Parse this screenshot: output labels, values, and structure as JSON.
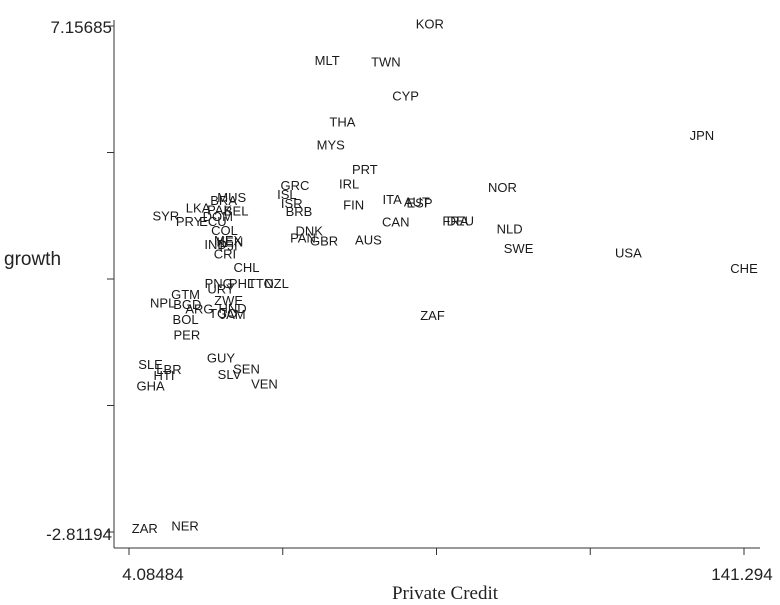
{
  "chart_data": {
    "type": "scatter",
    "xlabel": "Private Credit",
    "ylabel": "growth",
    "xlim": [
      4.08484,
      141.294
    ],
    "ylim": [
      -2.81194,
      7.15685
    ],
    "x_tick_labels": [
      "4.08484",
      "141.294"
    ],
    "y_tick_labels": [
      "7.15685",
      "-2.81194"
    ],
    "points": [
      {
        "label": "KOR",
        "x": 71.2,
        "y": 7.18
      },
      {
        "label": "MLT",
        "x": 48.3,
        "y": 6.46
      },
      {
        "label": "TWN",
        "x": 61.4,
        "y": 6.43
      },
      {
        "label": "CYP",
        "x": 65.8,
        "y": 5.76
      },
      {
        "label": "THA",
        "x": 51.7,
        "y": 5.24
      },
      {
        "label": "MYS",
        "x": 49.1,
        "y": 4.79
      },
      {
        "label": "JPN",
        "x": 131.9,
        "y": 4.98
      },
      {
        "label": "PRT",
        "x": 56.7,
        "y": 4.31
      },
      {
        "label": "IRL",
        "x": 53.2,
        "y": 4.02
      },
      {
        "label": "GRC",
        "x": 41.1,
        "y": 3.99
      },
      {
        "label": "NOR",
        "x": 87.4,
        "y": 3.95
      },
      {
        "label": "ISL",
        "x": 39.3,
        "y": 3.82
      },
      {
        "label": "ITA",
        "x": 62.8,
        "y": 3.72
      },
      {
        "label": "AUT",
        "x": 68.3,
        "y": 3.67
      },
      {
        "label": "ESP",
        "x": 68.9,
        "y": 3.65
      },
      {
        "label": "ISR",
        "x": 40.4,
        "y": 3.64
      },
      {
        "label": "FIN",
        "x": 54.2,
        "y": 3.61
      },
      {
        "label": "BRB",
        "x": 42.0,
        "y": 3.48
      },
      {
        "label": "CAN",
        "x": 63.6,
        "y": 3.27
      },
      {
        "label": "FRA",
        "x": 76.9,
        "y": 3.29
      },
      {
        "label": "DEU",
        "x": 78.0,
        "y": 3.29
      },
      {
        "label": "NLD",
        "x": 89.0,
        "y": 3.14
      },
      {
        "label": "DNK",
        "x": 44.3,
        "y": 3.1
      },
      {
        "label": "PAN",
        "x": 42.9,
        "y": 2.96
      },
      {
        "label": "GBR",
        "x": 47.6,
        "y": 2.9
      },
      {
        "label": "AUS",
        "x": 57.5,
        "y": 2.92
      },
      {
        "label": "SWE",
        "x": 91.0,
        "y": 2.75
      },
      {
        "label": "USA",
        "x": 115.5,
        "y": 2.66
      },
      {
        "label": "CHE",
        "x": 141.3,
        "y": 2.36
      },
      {
        "label": "MUS",
        "x": 27.0,
        "y": 3.76
      },
      {
        "label": "BRA",
        "x": 25.2,
        "y": 3.7
      },
      {
        "label": "LKA",
        "x": 19.5,
        "y": 3.55
      },
      {
        "label": "PAK",
        "x": 24.3,
        "y": 3.51
      },
      {
        "label": "BEL",
        "x": 28.0,
        "y": 3.49
      },
      {
        "label": "SYR",
        "x": 12.3,
        "y": 3.39
      },
      {
        "label": "DOM",
        "x": 23.9,
        "y": 3.38
      },
      {
        "label": "PRY",
        "x": 17.5,
        "y": 3.28
      },
      {
        "label": "ECU",
        "x": 22.8,
        "y": 3.28
      },
      {
        "label": "COL",
        "x": 25.4,
        "y": 3.11
      },
      {
        "label": "MEX",
        "x": 26.2,
        "y": 2.91
      },
      {
        "label": "KEN",
        "x": 26.6,
        "y": 2.88
      },
      {
        "label": "IND",
        "x": 23.4,
        "y": 2.83
      },
      {
        "label": "FJI",
        "x": 26.3,
        "y": 2.8
      },
      {
        "label": "CRI",
        "x": 25.5,
        "y": 2.64
      },
      {
        "label": "CHL",
        "x": 30.3,
        "y": 2.38
      },
      {
        "label": "PNG",
        "x": 24.1,
        "y": 2.06
      },
      {
        "label": "PHL",
        "x": 29.2,
        "y": 2.06
      },
      {
        "label": "TTO",
        "x": 33.5,
        "y": 2.06
      },
      {
        "label": "NZL",
        "x": 37.0,
        "y": 2.06
      },
      {
        "label": "URY",
        "x": 24.6,
        "y": 1.95
      },
      {
        "label": "GTM",
        "x": 16.7,
        "y": 1.85
      },
      {
        "label": "ZWE",
        "x": 26.3,
        "y": 1.73
      },
      {
        "label": "NPL",
        "x": 11.6,
        "y": 1.68
      },
      {
        "label": "BGD",
        "x": 17.1,
        "y": 1.65
      },
      {
        "label": "ARG",
        "x": 19.8,
        "y": 1.56
      },
      {
        "label": "HND",
        "x": 27.2,
        "y": 1.57
      },
      {
        "label": "TGO",
        "x": 25.1,
        "y": 1.47
      },
      {
        "label": "JAM",
        "x": 27.2,
        "y": 1.45
      },
      {
        "label": "ZAF",
        "x": 71.8,
        "y": 1.43
      },
      {
        "label": "BOL",
        "x": 16.7,
        "y": 1.35
      },
      {
        "label": "PER",
        "x": 17.0,
        "y": 1.05
      },
      {
        "label": "GUY",
        "x": 24.6,
        "y": 0.6
      },
      {
        "label": "SLE",
        "x": 8.9,
        "y": 0.47
      },
      {
        "label": "SEN",
        "x": 30.3,
        "y": 0.38
      },
      {
        "label": "LBR",
        "x": 13.0,
        "y": 0.37
      },
      {
        "label": "HTI",
        "x": 11.9,
        "y": 0.25
      },
      {
        "label": "SLV",
        "x": 26.5,
        "y": 0.27
      },
      {
        "label": "GHA",
        "x": 8.9,
        "y": 0.04
      },
      {
        "label": "VEN",
        "x": 34.3,
        "y": 0.08
      },
      {
        "label": "ZAR",
        "x": 7.6,
        "y": -2.76
      },
      {
        "label": "NER",
        "x": 16.6,
        "y": -2.71
      }
    ]
  }
}
